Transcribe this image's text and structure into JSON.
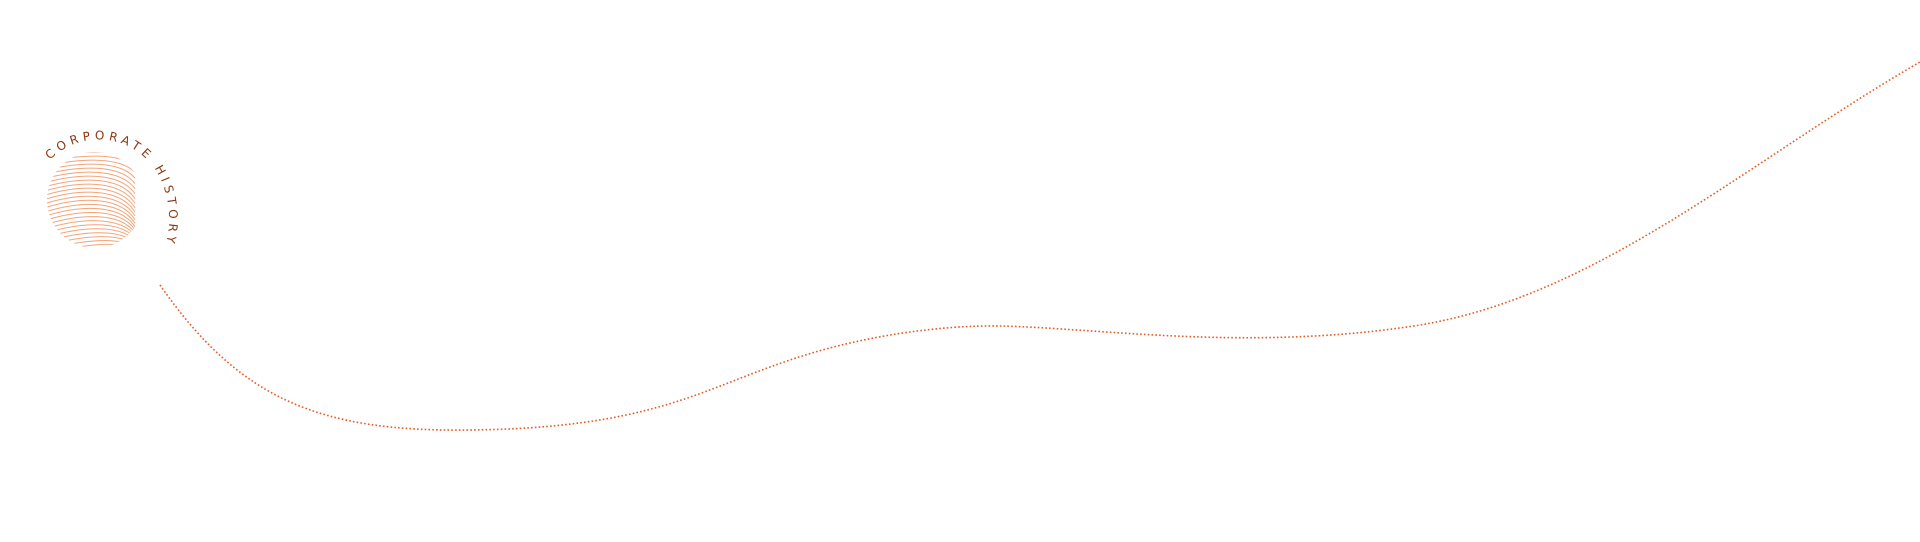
{
  "logo": {
    "text": "CORPORATE HISTORY"
  },
  "colors": {
    "logo_text": "#8a3a12",
    "logo_lines": "#f4a47a",
    "timeline": "#e85a24"
  }
}
